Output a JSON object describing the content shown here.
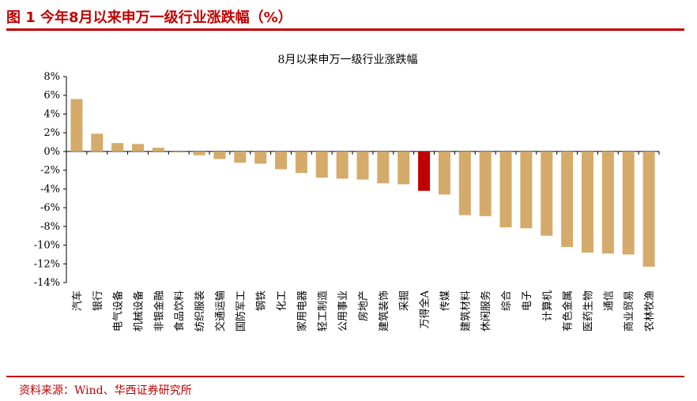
{
  "figure": {
    "title": "图 1 今年8月以来申万一级行业涨跌幅（%）",
    "source": "资料来源：Wind、华西证券研究所"
  },
  "colors": {
    "bar": "#D4AB6A",
    "highlight": "#C00000",
    "accent": "#C00000"
  },
  "chart_data": {
    "type": "bar",
    "title": "8月以来申万一级行业涨跌幅",
    "xlabel": "",
    "ylabel": "",
    "ylim": [
      -14,
      8
    ],
    "yticks": [
      8,
      6,
      4,
      2,
      0,
      -2,
      -4,
      -6,
      -8,
      -10,
      -12,
      -14
    ],
    "ytick_labels": [
      "8%",
      "6%",
      "4%",
      "2%",
      "0%",
      "-2%",
      "-4%",
      "-6%",
      "-8%",
      "-10%",
      "-12%",
      "-14%"
    ],
    "grid": false,
    "legend": "none",
    "highlight_category": "万得全A",
    "categories": [
      "汽车",
      "银行",
      "电气设备",
      "机械设备",
      "非银金融",
      "食品饮料",
      "纺织服装",
      "交通运输",
      "国防军工",
      "钢铁",
      "化工",
      "家用电器",
      "轻工制造",
      "公用事业",
      "房地产",
      "建筑装饰",
      "采掘",
      "万得全A",
      "传媒",
      "建筑材料",
      "休闲服务",
      "综合",
      "电子",
      "计算机",
      "有色金属",
      "医药生物",
      "通信",
      "商业贸易",
      "农林牧渔"
    ],
    "values": [
      5.6,
      1.9,
      0.9,
      0.8,
      0.4,
      -0.1,
      -0.4,
      -0.8,
      -1.2,
      -1.3,
      -1.9,
      -2.3,
      -2.8,
      -2.9,
      -3.0,
      -3.4,
      -3.5,
      -4.2,
      -4.6,
      -6.8,
      -6.9,
      -8.1,
      -8.2,
      -9.0,
      -10.2,
      -10.8,
      -10.9,
      -11.0,
      -12.3
    ]
  }
}
